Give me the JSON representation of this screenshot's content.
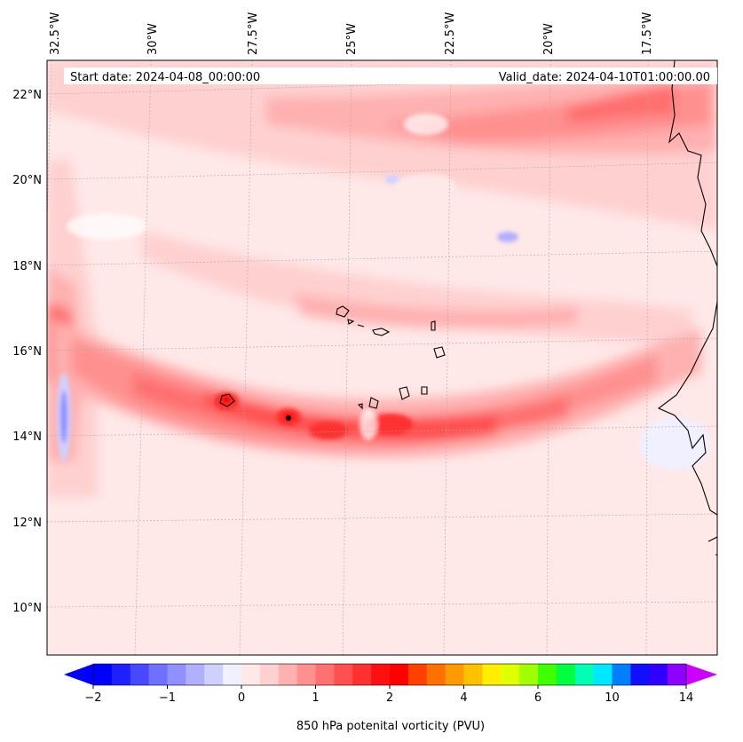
{
  "header": {
    "start_date": "Start date: 2024-04-08_00:00:00",
    "valid_date": "Valid_date: 2024-04-10T01:00:00.00"
  },
  "map": {
    "lon_labels": [
      "32.5°W",
      "30°W",
      "27.5°W",
      "25°W",
      "22.5°W",
      "20°W",
      "17.5°W"
    ],
    "lat_labels": [
      "22°N",
      "20°N",
      "18°N",
      "16°N",
      "14°N",
      "12°N",
      "10°N"
    ],
    "gridlines": true,
    "coastline_color": "#000000",
    "land_region": "West Africa coast (east edge)",
    "islands": "Cape Verde"
  },
  "colorbar": {
    "label": "850 hPa potenital vorticity (PVU)",
    "tick_labels": [
      "−2",
      "−1",
      "0",
      "1",
      "2",
      "4",
      "6",
      "10",
      "14"
    ],
    "colors": [
      "#0000ff",
      "#2020ff",
      "#4848ff",
      "#7070ff",
      "#9090ff",
      "#b0b0ff",
      "#d0d0ff",
      "#f0f0ff",
      "#ffe8e8",
      "#ffd0d0",
      "#ffb0b0",
      "#ff9090",
      "#ff7070",
      "#ff5050",
      "#ff3030",
      "#ff1010",
      "#ff0000",
      "#ff4000",
      "#ff7000",
      "#ff9a00",
      "#ffc000",
      "#ffee00",
      "#e0ff00",
      "#a0ff00",
      "#40ff00",
      "#00ff40",
      "#00ffb0",
      "#00e8ff",
      "#0080ff",
      "#1010ff",
      "#3000ff",
      "#9000ff"
    ],
    "extend_low_color": "#0000ff",
    "extend_high_color": "#cc00ff"
  }
}
